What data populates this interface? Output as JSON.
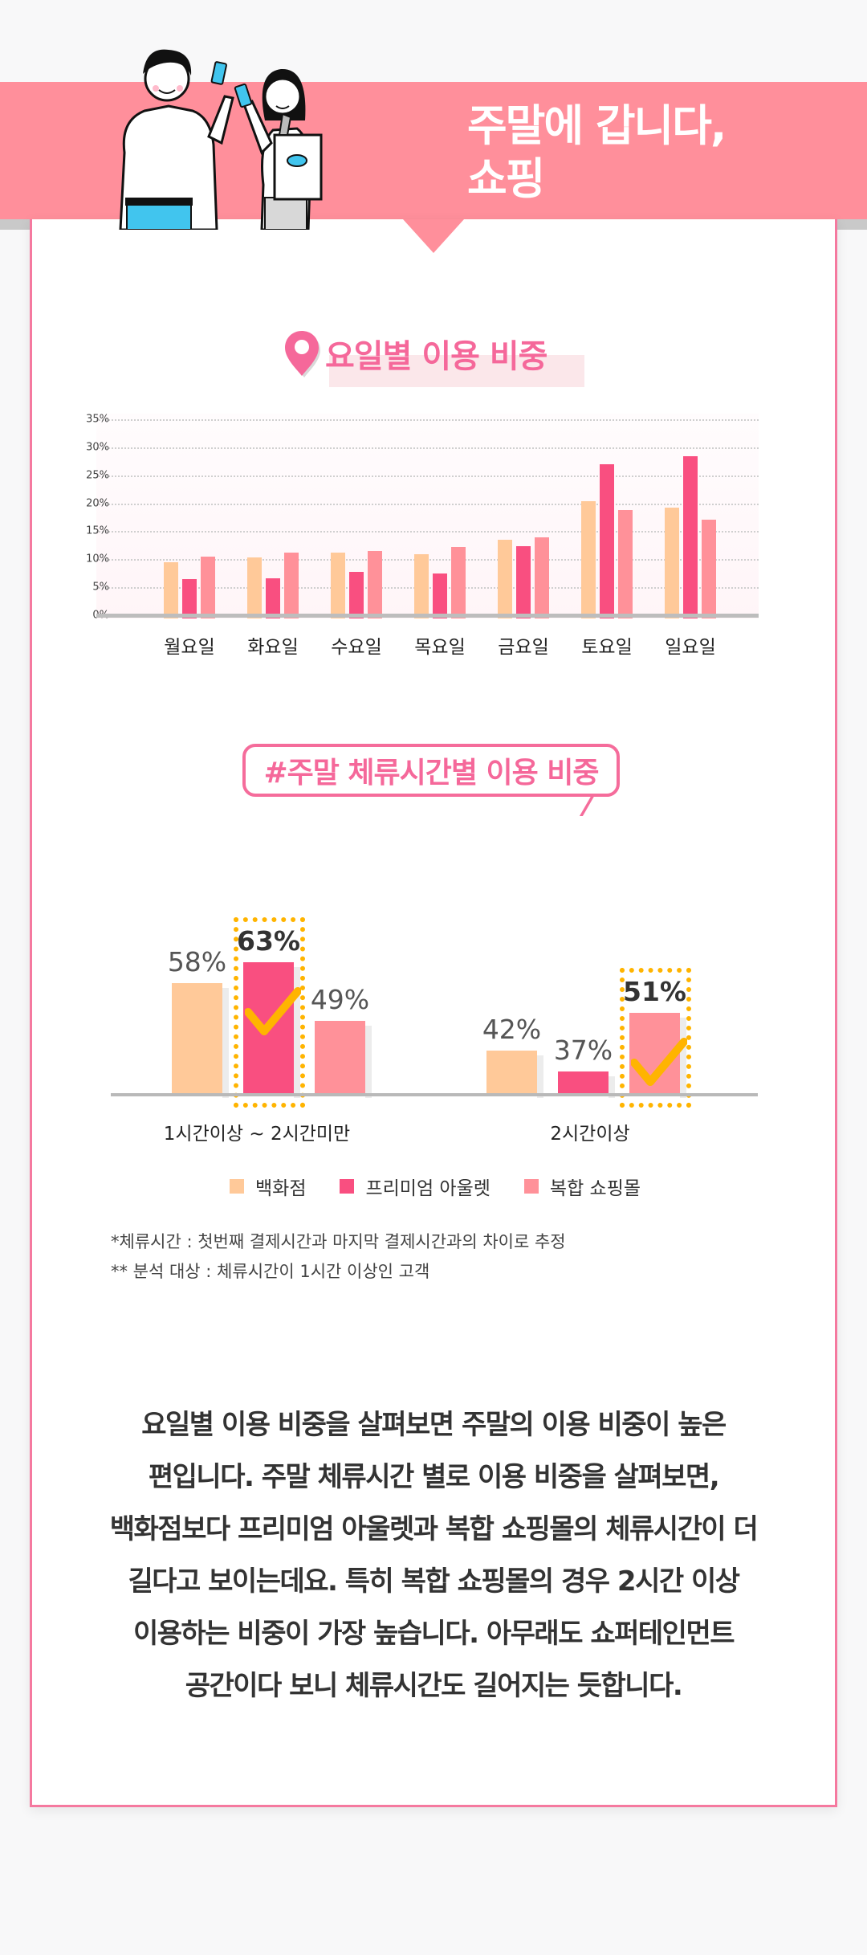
{
  "header": {
    "title_line1": "주말에 갑니다,",
    "title_line2": "쇼핑",
    "banner_color": "#ff8f9b"
  },
  "section1": {
    "icon": "location-pin-icon",
    "title": "요일별 이용 비중"
  },
  "section2": {
    "title": "#주말 체류시간별 이용 비중"
  },
  "legend": [
    {
      "label": "백화점",
      "color": "#ffc999"
    },
    {
      "label": "프리미엄 아울렛",
      "color": "#f94f80"
    },
    {
      "label": "복합 쇼핑몰",
      "color": "#ff9199"
    }
  ],
  "notes": [
    "*체류시간 : 첫번째 결제시간과 마지막 결제시간과의 차이로 추정",
    "** 분석 대상 : 체류시간이 1시간 이상인 고객"
  ],
  "paragraph": [
    "요일별 이용 비중을 살펴보면 주말의 이용 비중이 높은",
    "편입니다.  주말 체류시간 별로 이용 비중을 살펴보면,",
    "백화점보다 프리미엄 아울렛과 복합 쇼핑몰의 체류시간이 더",
    "길다고 보이는데요.  특히 복합 쇼핑몰의 경우 2시간 이상",
    "이용하는  비중이 가장 높습니다. 아무래도 쇼퍼테인먼트",
    "공간이다 보니 체류시간도 길어지는 듯합니다."
  ],
  "chart_data": [
    {
      "type": "bar",
      "title": "요일별 이용 비중",
      "categories": [
        "월요일",
        "화요일",
        "수요일",
        "목요일",
        "금요일",
        "토요일",
        "일요일"
      ],
      "series": [
        {
          "name": "백화점",
          "color": "#ffc999",
          "values": [
            10.0,
            10.9,
            11.7,
            11.5,
            14.1,
            21.0,
            19.8
          ]
        },
        {
          "name": "프리미엄 아울렛",
          "color": "#f94f80",
          "values": [
            7.0,
            7.2,
            8.3,
            8.1,
            12.9,
            27.5,
            29.0
          ]
        },
        {
          "name": "복합 쇼핑몰",
          "color": "#ff9199",
          "values": [
            11.1,
            11.8,
            12.0,
            12.8,
            14.5,
            19.3,
            17.7
          ]
        }
      ],
      "yticks": [
        "0%",
        "5%",
        "10%",
        "15%",
        "20%",
        "25%",
        "30%",
        "35%"
      ],
      "ylim": [
        0,
        35
      ],
      "xlabel": "",
      "ylabel": "",
      "grid": true,
      "legend_position": "bottom"
    },
    {
      "type": "bar",
      "title": "#주말 체류시간별 이용 비중",
      "categories": [
        "1시간이상 ~ 2시간미만",
        "2시간이상"
      ],
      "series": [
        {
          "name": "백화점",
          "color": "#ffc999",
          "values": [
            58,
            42
          ]
        },
        {
          "name": "프리미엄 아울렛",
          "color": "#f94f80",
          "values": [
            63,
            37
          ]
        },
        {
          "name": "복합 쇼핑몰",
          "color": "#ff9199",
          "values": [
            49,
            51
          ]
        }
      ],
      "value_labels": [
        [
          "58%",
          "63%",
          "49%"
        ],
        [
          "42%",
          "37%",
          "51%"
        ]
      ],
      "highlighted": [
        {
          "category": "1시간이상 ~ 2시간미만",
          "series": "프리미엄 아울렛"
        },
        {
          "category": "2시간이상",
          "series": "복합 쇼핑몰"
        }
      ],
      "unit": "%",
      "legend_position": "bottom"
    }
  ]
}
